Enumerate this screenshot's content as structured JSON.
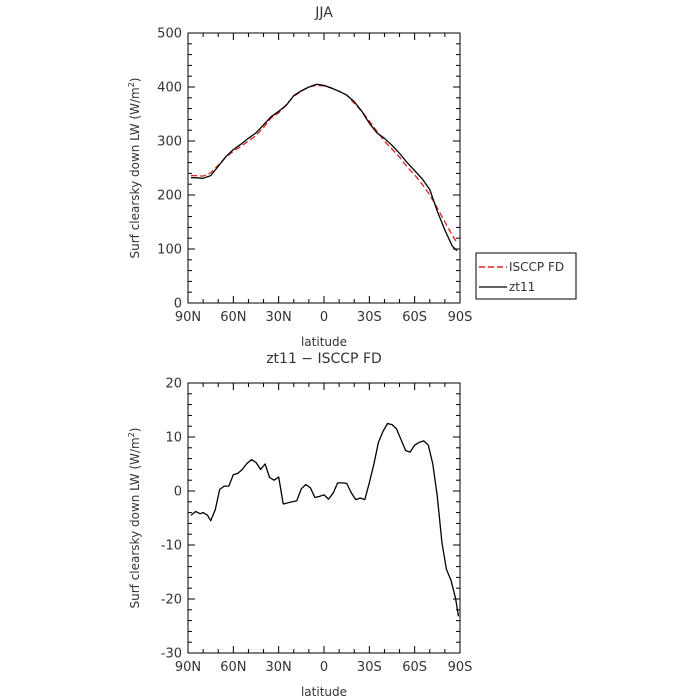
{
  "chart_data": [
    {
      "type": "line",
      "title": "JJA",
      "xlabel": "latitude",
      "ylabel_main": "Surf clearsky down LW (W/m",
      "ylabel_sup": "2",
      "ylabel_close": ")",
      "x_ticklabels": [
        "90N",
        "60N",
        "30N",
        "0",
        "30S",
        "60S",
        "90S"
      ],
      "xlim": [
        90,
        -90
      ],
      "ylim": [
        0,
        500
      ],
      "y_ticks": [
        0,
        100,
        200,
        300,
        400,
        500
      ],
      "series": [
        {
          "name": "ISCCP FD",
          "color": "#e02020",
          "dash": "dashed",
          "x": [
            88,
            85,
            80,
            75,
            70,
            65,
            60,
            55,
            50,
            45,
            40,
            35,
            30,
            25,
            20,
            15,
            10,
            5,
            0,
            -5,
            -10,
            -15,
            -20,
            -25,
            -30,
            -35,
            -40,
            -45,
            -50,
            -55,
            -60,
            -65,
            -70,
            -75,
            -80,
            -85,
            -88
          ],
          "y": [
            236,
            236,
            235,
            241,
            255,
            270,
            281,
            290,
            300,
            310,
            325,
            343,
            352,
            367,
            383,
            392,
            400,
            403,
            402,
            398,
            392,
            385,
            370,
            355,
            337,
            318,
            300,
            285,
            270,
            252,
            237,
            220,
            200,
            176,
            150,
            125,
            112
          ]
        },
        {
          "name": "zt11",
          "color": "#000000",
          "dash": "solid",
          "x": [
            88,
            85,
            80,
            75,
            70,
            65,
            60,
            55,
            50,
            45,
            40,
            35,
            30,
            25,
            20,
            15,
            10,
            5,
            0,
            -5,
            -10,
            -15,
            -20,
            -25,
            -30,
            -35,
            -40,
            -45,
            -50,
            -55,
            -60,
            -65,
            -70,
            -75,
            -80,
            -85,
            -88
          ],
          "y": [
            232,
            232,
            231,
            236,
            253,
            271,
            284,
            294,
            305,
            315,
            330,
            345,
            355,
            366,
            384,
            393,
            400,
            405,
            403,
            398,
            392,
            385,
            373,
            355,
            333,
            315,
            305,
            292,
            277,
            260,
            245,
            230,
            210,
            170,
            135,
            105,
            97
          ]
        }
      ],
      "legend": {
        "placement": "right-outside",
        "entries": [
          "ISCCP FD",
          "zt11"
        ]
      }
    },
    {
      "type": "line",
      "title": "zt11 − ISCCP FD",
      "xlabel": "latitude",
      "ylabel_main": "Surf clearsky down LW (W/m",
      "ylabel_sup": "2",
      "ylabel_close": ")",
      "x_ticklabels": [
        "90N",
        "60N",
        "30N",
        "0",
        "30S",
        "60S",
        "90S"
      ],
      "xlim": [
        90,
        -90
      ],
      "ylim": [
        -30,
        20
      ],
      "y_ticks": [
        -30,
        -20,
        -10,
        0,
        10,
        20
      ],
      "series": [
        {
          "name": "",
          "color": "#000000",
          "dash": "solid",
          "x": [
            88,
            85,
            82,
            80,
            77,
            75,
            72,
            69,
            66,
            63,
            60,
            57,
            54,
            51,
            48,
            45,
            42,
            39,
            36,
            33,
            30,
            27,
            24,
            21,
            18,
            15,
            12,
            9,
            6,
            3,
            0,
            -3,
            -6,
            -9,
            -12,
            -15,
            -18,
            -21,
            -24,
            -27,
            -30,
            -33,
            -36,
            -39,
            -42,
            -45,
            -48,
            -51,
            -54,
            -57,
            -60,
            -63,
            -66,
            -69,
            -72,
            -75,
            -78,
            -81,
            -84,
            -87,
            -89
          ],
          "y": [
            -4.5,
            -3.8,
            -4.2,
            -4.0,
            -4.5,
            -5.5,
            -3.5,
            0.3,
            0.9,
            0.9,
            3.0,
            3.3,
            4.0,
            5.1,
            5.8,
            5.3,
            4.0,
            5.0,
            2.5,
            2.0,
            2.6,
            -2.4,
            -2.2,
            -2.0,
            -1.8,
            0.4,
            1.2,
            0.6,
            -1.2,
            -1.0,
            -0.7,
            -1.5,
            -0.4,
            1.5,
            1.5,
            1.4,
            -0.3,
            -1.6,
            -1.3,
            -1.6,
            1.5,
            5.0,
            9.0,
            11.0,
            12.5,
            12.3,
            11.5,
            9.5,
            7.5,
            7.2,
            8.5,
            9.0,
            9.3,
            8.5,
            5.0,
            -1.0,
            -9.5,
            -14.5,
            -16.5,
            -19.8,
            -23.2
          ]
        }
      ]
    }
  ]
}
